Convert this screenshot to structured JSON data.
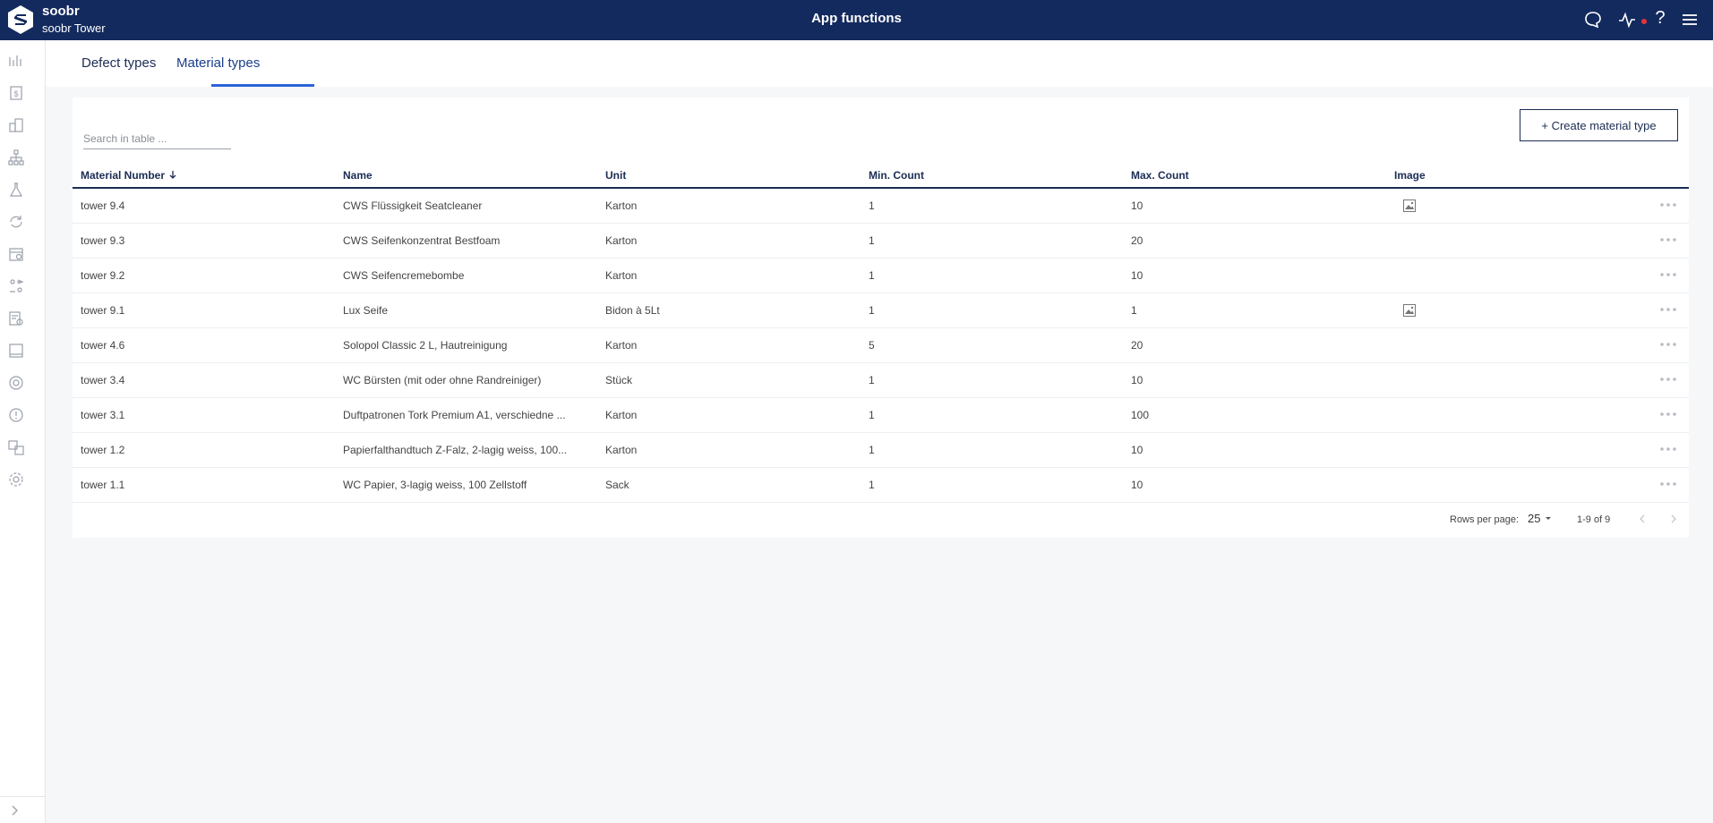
{
  "header": {
    "brand": "soobr",
    "subbrand": "soobr Tower",
    "title": "App functions",
    "icons": [
      "chat-icon",
      "activity-icon",
      "help-icon",
      "menu-icon"
    ],
    "help_label": "?"
  },
  "sidebar": {
    "items": [
      {
        "icon": "analytics-icon"
      },
      {
        "icon": "billing-icon"
      },
      {
        "icon": "buildings-icon"
      },
      {
        "icon": "hierarchy-icon"
      },
      {
        "icon": "lab-icon"
      },
      {
        "icon": "cycle-icon"
      },
      {
        "icon": "calendar-icon"
      },
      {
        "icon": "assignment-icon"
      },
      {
        "icon": "report-icon"
      },
      {
        "icon": "device-icon"
      },
      {
        "icon": "target-icon"
      },
      {
        "icon": "info-icon"
      },
      {
        "icon": "translate-icon"
      },
      {
        "icon": "settings-icon"
      }
    ],
    "collapse_icon": "chevron-right-icon"
  },
  "tabs": [
    {
      "label": "Defect types",
      "active": false
    },
    {
      "label": "Material types",
      "active": true
    }
  ],
  "toolbar": {
    "search_placeholder": "Search in table ...",
    "create_label": "+ Create material type"
  },
  "table": {
    "columns": {
      "number": "Material Number",
      "name": "Name",
      "unit": "Unit",
      "min": "Min. Count",
      "max": "Max. Count",
      "image": "Image"
    },
    "rows": [
      {
        "number": "tower 9.4",
        "name": "CWS Flüssigkeit Seatcleaner",
        "unit": "Karton",
        "min": "1",
        "max": "10",
        "has_image": true
      },
      {
        "number": "tower 9.3",
        "name": "CWS Seifenkonzentrat Bestfoam",
        "unit": "Karton",
        "min": "1",
        "max": "20",
        "has_image": false
      },
      {
        "number": "tower 9.2",
        "name": "CWS Seifencremebombe",
        "unit": "Karton",
        "min": "1",
        "max": "10",
        "has_image": false
      },
      {
        "number": "tower 9.1",
        "name": "Lux Seife",
        "unit": "Bidon à 5Lt",
        "min": "1",
        "max": "1",
        "has_image": true
      },
      {
        "number": "tower 4.6",
        "name": "Solopol Classic 2 L, Hautreinigung",
        "unit": "Karton",
        "min": "5",
        "max": "20",
        "has_image": false
      },
      {
        "number": "tower 3.4",
        "name": "WC Bürsten (mit oder ohne Randreiniger)",
        "unit": "Stück",
        "min": "1",
        "max": "10",
        "has_image": false
      },
      {
        "number": "tower 3.1",
        "name": "Duftpatronen Tork Premium A1, verschiedne ...",
        "unit": "Karton",
        "min": "1",
        "max": "100",
        "has_image": false
      },
      {
        "number": "tower 1.2",
        "name": "Papierfalthandtuch Z-Falz, 2-lagig weiss, 100...",
        "unit": "Karton",
        "min": "1",
        "max": "10",
        "has_image": false
      },
      {
        "number": "tower 1.1",
        "name": "WC Papier, 3-lagig weiss, 100 Zellstoff",
        "unit": "Sack",
        "min": "1",
        "max": "10",
        "has_image": false
      }
    ]
  },
  "pagination": {
    "rows_label": "Rows per page:",
    "rows_value": "25",
    "range": "1-9 of 9"
  },
  "colors": {
    "header_bg": "#132a5e",
    "accent": "#2a64d8",
    "notification_dot": "#e5343c"
  }
}
